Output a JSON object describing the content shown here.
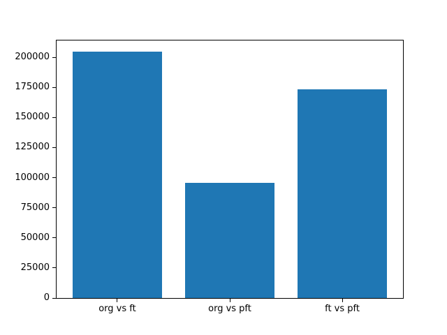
{
  "chart_data": {
    "type": "bar",
    "title": "",
    "categories": [
      "org vs ft",
      "org vs pft",
      "ft vs pft"
    ],
    "values": [
      204600,
      95700,
      173300
    ],
    "xlabel": "",
    "ylabel": "",
    "yticks": [
      0,
      25000,
      50000,
      75000,
      100000,
      125000,
      150000,
      175000,
      200000
    ],
    "ylim": [
      0,
      214000
    ],
    "xlim": [
      -0.54,
      2.54
    ],
    "bar_width": 0.8,
    "grid": false,
    "legend": false,
    "colors": {
      "bar": "#1f77b4",
      "text": "#000000",
      "spine": "#000000",
      "background": "#ffffff"
    }
  }
}
